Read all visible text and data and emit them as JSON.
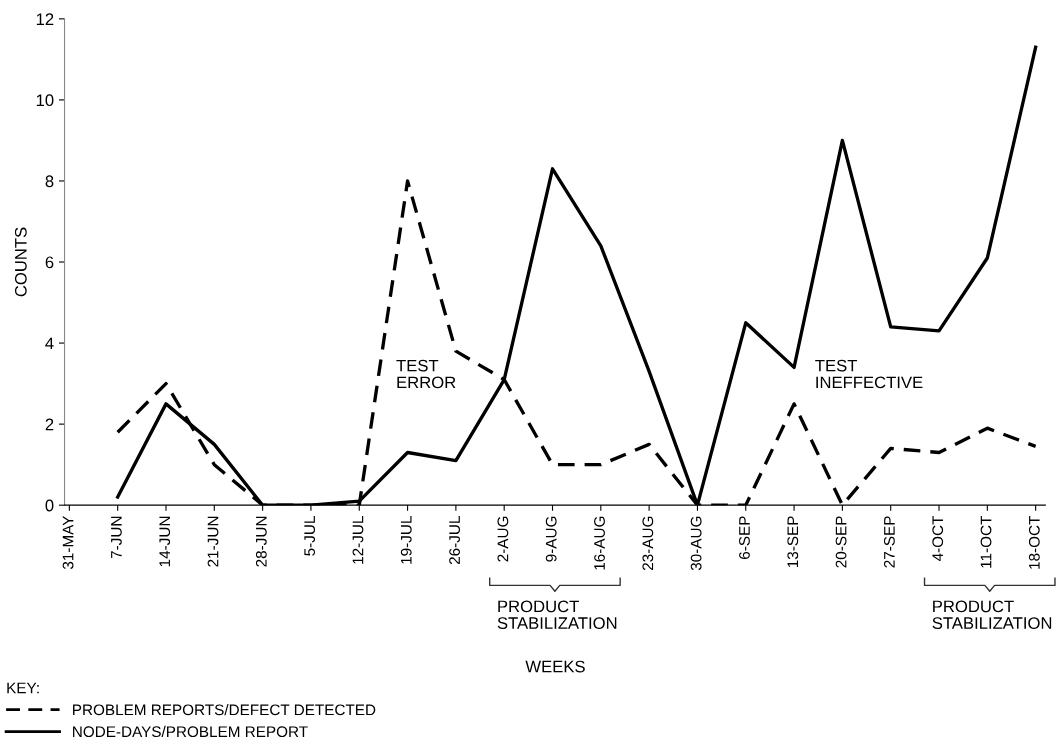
{
  "chart_data": {
    "type": "line",
    "ylabel": "COUNTS",
    "legend_title": "KEY:",
    "legend": "bottom left",
    "grid": false,
    "categories": [
      "31-MAY",
      "7-JUN",
      "14-JUN",
      "21-JUN",
      "28-JUN",
      "5-JUL",
      "12-JUL",
      "19-JUL",
      "26-JUL",
      "2-AUG",
      "9-AUG",
      "16-AUG",
      "23-AUG",
      "30-AUG",
      "6-SEP",
      "13-SEP",
      "20-SEP",
      "27-SEP",
      "4-OCT",
      "11-OCT",
      "18-OCT"
    ],
    "ylim": [
      0,
      12
    ],
    "yticks": [
      0,
      2,
      4,
      6,
      8,
      10,
      12
    ],
    "series": [
      {
        "name": "PROBLEM REPORTS/DEFECT DETECTED",
        "color": "#000000",
        "line_style": "dashed",
        "values": [
          null,
          1.8,
          3.0,
          1.0,
          0.0,
          0.0,
          0.0,
          8.0,
          3.8,
          3.1,
          1.0,
          1.0,
          1.5,
          0.0,
          0.0,
          2.5,
          0.0,
          1.4,
          1.3,
          1.9,
          1.45
        ]
      },
      {
        "name": "NODE-DAYS/PROBLEM REPORT",
        "color": "#000000",
        "line_style": "solid",
        "values": [
          null,
          0.2,
          2.5,
          1.5,
          0.0,
          0.0,
          0.1,
          1.3,
          1.1,
          3.1,
          8.3,
          6.4,
          3.3,
          0.0,
          4.5,
          3.4,
          9.0,
          4.4,
          4.3,
          6.1,
          11.3
        ]
      }
    ],
    "annotations": [
      "TEST\nERROR",
      "TEST\nINEFFECTIVE",
      "PRODUCT\nSTABILIZATION",
      "PRODUCT\nSTABILIZATION",
      "WEEKS"
    ]
  }
}
